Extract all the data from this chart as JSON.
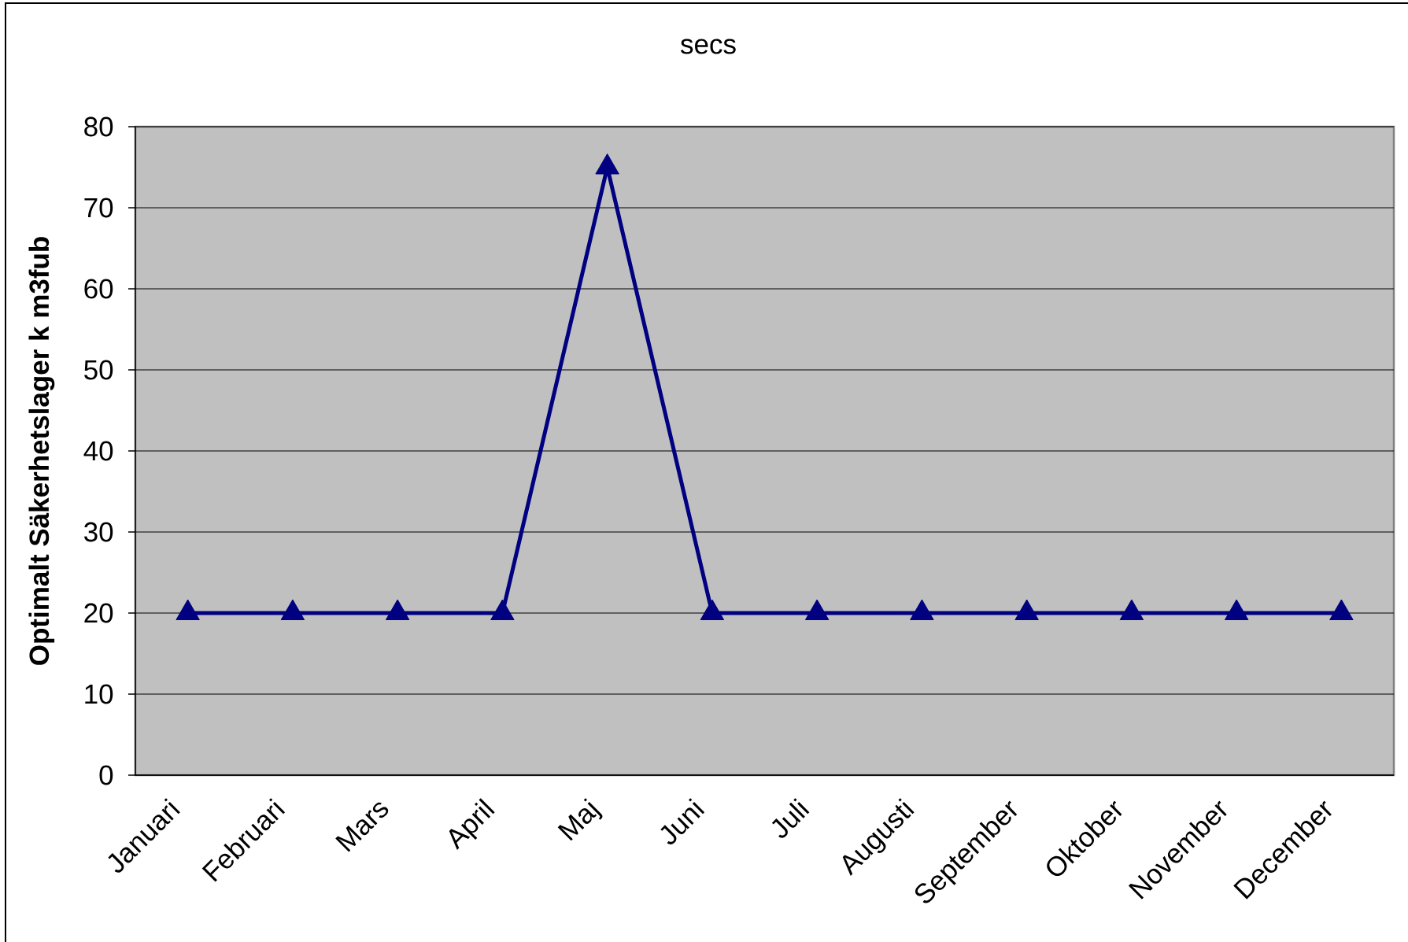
{
  "chart_data": {
    "type": "line",
    "title": "secs",
    "ylabel": "Optimalt Säkerhetslager k m3fub",
    "categories": [
      "Januari",
      "Februari",
      "Mars",
      "April",
      "Maj",
      "Juni",
      "Juli",
      "Augusti",
      "September",
      "Oktober",
      "November",
      "December"
    ],
    "series": [
      {
        "color": "#000080",
        "values": [
          20,
          20,
          20,
          20,
          75,
          20,
          20,
          20,
          20,
          20,
          20,
          20
        ]
      }
    ],
    "ylim": [
      0,
      80
    ],
    "yticks": [
      0,
      10,
      20,
      30,
      40,
      50,
      60,
      70,
      80
    ],
    "grid": "y",
    "marker": "triangle",
    "line_style": "solid"
  }
}
